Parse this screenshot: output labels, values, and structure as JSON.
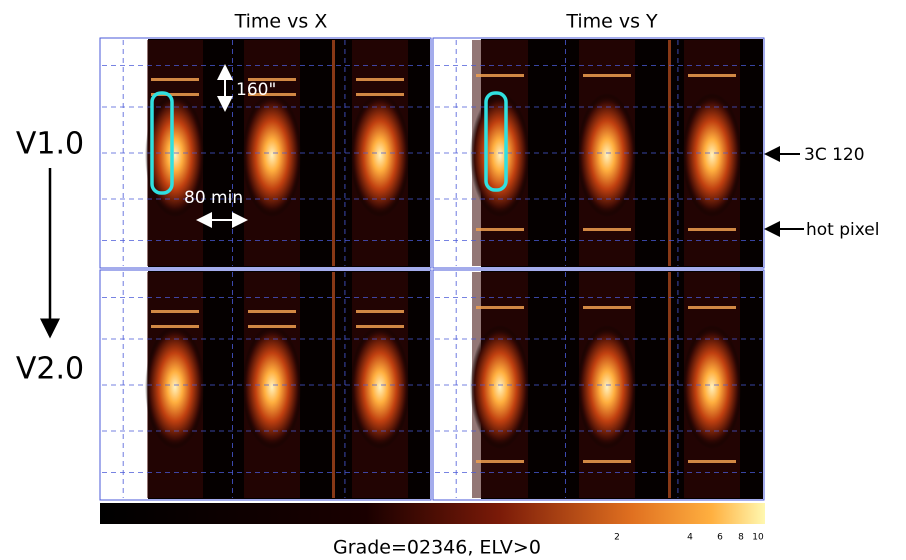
{
  "column_titles": [
    "Time vs X",
    "Time vs Y"
  ],
  "row_labels": [
    "V1.0",
    "V2.0"
  ],
  "annotations": {
    "scale_vertical": "160\"",
    "scale_horizontal": "80 min",
    "source": "3C 120",
    "hot_pixel": "hot pixel"
  },
  "colorbar": {
    "ticks": [
      "2",
      "4",
      "6",
      "8",
      "10"
    ],
    "caption": "Grade=02346, ELV>0"
  }
}
